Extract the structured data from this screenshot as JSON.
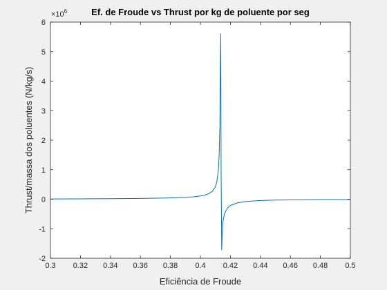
{
  "chart_data": {
    "type": "line",
    "title": "Ef. de Froude vs Thrust por kg de poluente por seg",
    "xlabel": "Eficiência de Froude",
    "ylabel": "Thrust/massa dos poluentes (N/kg/s)",
    "y_exponent_label": "×10",
    "y_exponent_value": "6",
    "xlim": [
      0.3,
      0.5
    ],
    "ylim": [
      -2,
      6
    ],
    "xticks": [
      "0.3",
      "0.32",
      "0.34",
      "0.36",
      "0.38",
      "0.4",
      "0.42",
      "0.44",
      "0.46",
      "0.48",
      "0.5"
    ],
    "yticks": [
      "-2",
      "-1",
      "0",
      "1",
      "2",
      "3",
      "4",
      "5",
      "6"
    ],
    "grid": false,
    "line_color": "#0072bd",
    "series": [
      {
        "x": [
          0.3,
          0.32,
          0.34,
          0.36,
          0.38,
          0.39,
          0.395,
          0.4,
          0.403,
          0.406,
          0.408,
          0.41,
          0.411,
          0.412,
          0.4125,
          0.413,
          0.4133,
          0.4136,
          0.4138,
          0.4142,
          0.4146,
          0.415,
          0.416,
          0.418,
          0.42,
          0.425,
          0.43,
          0.44,
          0.45,
          0.46,
          0.47,
          0.48,
          0.49,
          0.5
        ],
        "y": [
          0.01,
          0.013,
          0.018,
          0.027,
          0.045,
          0.065,
          0.08,
          0.11,
          0.14,
          0.2,
          0.27,
          0.42,
          0.6,
          1.0,
          1.5,
          2.5,
          4.5,
          5.6,
          1.0,
          -1.72,
          -1.1,
          -0.78,
          -0.5,
          -0.3,
          -0.21,
          -0.12,
          -0.08,
          -0.045,
          -0.03,
          -0.022,
          -0.017,
          -0.013,
          -0.011,
          -0.009
        ]
      }
    ]
  }
}
